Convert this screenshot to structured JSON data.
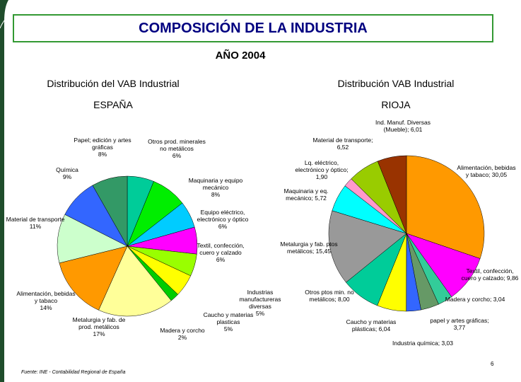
{
  "header": {
    "title": "COMPOSICIÓN DE LA INDUSTRIA",
    "subtitle": "AÑO 2004"
  },
  "chart_data": [
    {
      "type": "pie",
      "title": "Distribución del VAB Industrial",
      "subtitle": "ESPAÑA",
      "categories": [
        "Otros prod. minerales no metálicos",
        "Maquinaria y equipo mecánico",
        "Equipo eléctrico, electrónico y óptico",
        "Textil, confección, cuero y calzado",
        "Industrias manufactureras diversas",
        "Caucho y materias plasticas",
        "Madera y corcho",
        "Metalurgia y fab. de prod. metálicos",
        "Alimentación, bebidas y tabaco",
        "Material de transporte",
        "Química",
        "Papel; edición y artes gráficas"
      ],
      "values": [
        6,
        8,
        6,
        6,
        5,
        5,
        2,
        17,
        14,
        11,
        9,
        8
      ],
      "value_labels": [
        "6%",
        "8%",
        "6%",
        "6%",
        "5%",
        "5%",
        "2%",
        "17%",
        "14%",
        "11%",
        "9%",
        "8%"
      ],
      "colors": [
        "#00cc99",
        "#00ee00",
        "#00ccff",
        "#ff00ff",
        "#99ff00",
        "#ffff00",
        "#00cc00",
        "#ffff99",
        "#ff9900",
        "#ccffcc",
        "#3366ff",
        "#339966"
      ]
    },
    {
      "type": "pie",
      "title": "Distribución VAB Industrial",
      "subtitle": "RIOJA",
      "categories": [
        "Alimentación, bebidas y tabaco;",
        "Textil, confección, cuero y calzado;",
        "Madera y corcho;",
        "papel y artes gráficas;",
        "Industria química;",
        "Caucho y materias plásticas;",
        "Otros ptos min. no metálicos;",
        "Metalurgia y fab. ptos metálicos;",
        "Maquinaria y eq. mecánico;",
        "Lq. eléctrico, electrónico y óptico;",
        "Material de transporte;",
        "Ind. Manuf. Diversas (Mueble);"
      ],
      "values": [
        30.05,
        9.86,
        3.04,
        3.77,
        3.03,
        6.04,
        8.0,
        15.45,
        5.72,
        1.9,
        6.52,
        6.01
      ],
      "value_labels": [
        "30,05",
        "9,86",
        "3,04",
        "3,77",
        "3,03",
        "6,04",
        "8,00",
        "15,45",
        "5,72",
        "1,90",
        "6,52",
        "6,01"
      ],
      "colors": [
        "#ff9900",
        "#ff00ff",
        "#33cc99",
        "#669966",
        "#3366ff",
        "#ffff00",
        "#00cc99",
        "#999999",
        "#00ffff",
        "#ff99cc",
        "#99cc00",
        "#993300"
      ]
    }
  ],
  "footer": {
    "source": "Fuente: INE - Contabilidad Regional de España",
    "page": "6"
  }
}
